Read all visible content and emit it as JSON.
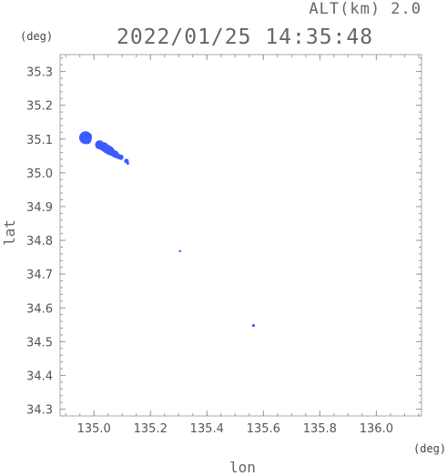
{
  "header": {
    "alt_label": "ALT(km) 2.0",
    "timestamp": "2022/01/25 14:35:48"
  },
  "chart_data": {
    "type": "scatter",
    "xlabel": "lon",
    "ylabel": "lat",
    "x_unit": "(deg)",
    "y_unit": "(deg)",
    "xlim": [
      134.88,
      136.16
    ],
    "ylim": [
      34.28,
      35.35
    ],
    "x_ticks": [
      "135.0",
      "135.2",
      "135.4",
      "135.6",
      "135.8",
      "136.0"
    ],
    "y_ticks": [
      "34.3",
      "34.4",
      "34.5",
      "34.6",
      "34.7",
      "34.8",
      "34.9",
      "35.0",
      "35.1",
      "35.2",
      "35.3"
    ],
    "grid": false,
    "marker_color": "#3b5bff",
    "points": [
      {
        "lon": 134.97,
        "lat": 35.104,
        "size": 7
      },
      {
        "lon": 134.975,
        "lat": 35.098,
        "size": 5
      },
      {
        "lon": 134.98,
        "lat": 35.108,
        "size": 4
      },
      {
        "lon": 135.02,
        "lat": 35.083,
        "size": 5
      },
      {
        "lon": 135.035,
        "lat": 35.077,
        "size": 5
      },
      {
        "lon": 135.045,
        "lat": 35.071,
        "size": 5
      },
      {
        "lon": 135.055,
        "lat": 35.066,
        "size": 5
      },
      {
        "lon": 135.065,
        "lat": 35.06,
        "size": 4
      },
      {
        "lon": 135.075,
        "lat": 35.055,
        "size": 4
      },
      {
        "lon": 135.085,
        "lat": 35.049,
        "size": 3
      },
      {
        "lon": 135.095,
        "lat": 35.046,
        "size": 3
      },
      {
        "lon": 135.115,
        "lat": 35.035,
        "size": 2.5
      },
      {
        "lon": 135.12,
        "lat": 35.028,
        "size": 1.5
      },
      {
        "lon": 135.305,
        "lat": 34.768,
        "size": 1.2
      },
      {
        "lon": 135.565,
        "lat": 34.548,
        "size": 1.6
      }
    ]
  }
}
